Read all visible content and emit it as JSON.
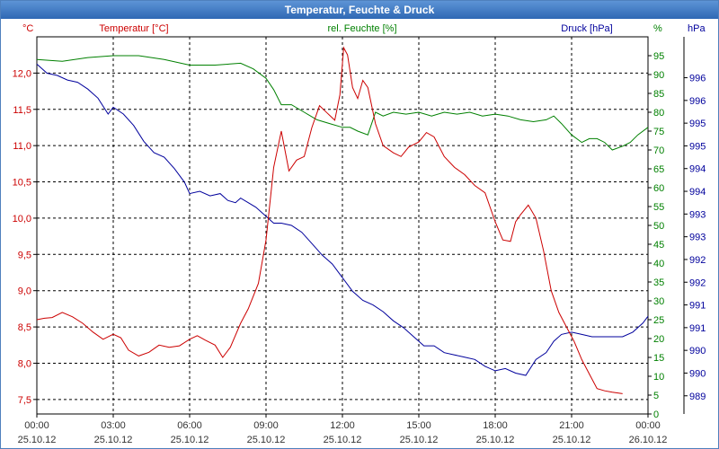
{
  "title": "Temperatur, Feuchte & Druck",
  "colors": {
    "temperature": "#cc0000",
    "humidity": "#008000",
    "pressure": "#00009c",
    "grid": "#000000",
    "axis_text": "#333333"
  },
  "chart_data": {
    "type": "line",
    "grid": true,
    "x_ticks": [
      {
        "time": "00:00",
        "date": "25.10.12"
      },
      {
        "time": "03:00",
        "date": "25.10.12"
      },
      {
        "time": "06:00",
        "date": "25.10.12"
      },
      {
        "time": "09:00",
        "date": "25.10.12"
      },
      {
        "time": "12:00",
        "date": "25.10.12"
      },
      {
        "time": "15:00",
        "date": "25.10.12"
      },
      {
        "time": "18:00",
        "date": "25.10.12"
      },
      {
        "time": "21:00",
        "date": "25.10.12"
      },
      {
        "time": "00:00",
        "date": "26.10.12"
      }
    ],
    "x_range_hours": [
      0,
      24
    ],
    "series": [
      {
        "name": "Temperatur [°C]",
        "axis": "left",
        "unit": "°C",
        "ylim": [
          7.3,
          12.5
        ],
        "ticks": [
          "7,5",
          "8,0",
          "8,5",
          "9,0",
          "9,5",
          "10,0",
          "10,5",
          "11,0",
          "11,5",
          "12,0"
        ],
        "tick_values": [
          7.5,
          8.0,
          8.5,
          9.0,
          9.5,
          10.0,
          10.5,
          11.0,
          11.5,
          12.0
        ],
        "points": [
          [
            0,
            8.6
          ],
          [
            0.3,
            8.62
          ],
          [
            0.6,
            8.63
          ],
          [
            1.0,
            8.7
          ],
          [
            1.4,
            8.64
          ],
          [
            1.8,
            8.55
          ],
          [
            2.2,
            8.43
          ],
          [
            2.6,
            8.33
          ],
          [
            3.0,
            8.4
          ],
          [
            3.3,
            8.35
          ],
          [
            3.6,
            8.18
          ],
          [
            4.0,
            8.1
          ],
          [
            4.4,
            8.15
          ],
          [
            4.8,
            8.25
          ],
          [
            5.2,
            8.22
          ],
          [
            5.6,
            8.24
          ],
          [
            6.0,
            8.33
          ],
          [
            6.3,
            8.38
          ],
          [
            6.6,
            8.32
          ],
          [
            7.0,
            8.25
          ],
          [
            7.3,
            8.08
          ],
          [
            7.6,
            8.22
          ],
          [
            8.0,
            8.55
          ],
          [
            8.3,
            8.75
          ],
          [
            8.7,
            9.1
          ],
          [
            9.0,
            9.7
          ],
          [
            9.3,
            10.7
          ],
          [
            9.6,
            11.2
          ],
          [
            9.9,
            10.65
          ],
          [
            10.2,
            10.8
          ],
          [
            10.5,
            10.85
          ],
          [
            10.8,
            11.25
          ],
          [
            11.1,
            11.55
          ],
          [
            11.4,
            11.45
          ],
          [
            11.7,
            11.35
          ],
          [
            11.9,
            11.7
          ],
          [
            12.05,
            12.35
          ],
          [
            12.2,
            12.25
          ],
          [
            12.4,
            11.8
          ],
          [
            12.6,
            11.65
          ],
          [
            12.8,
            11.9
          ],
          [
            13.0,
            11.8
          ],
          [
            13.3,
            11.3
          ],
          [
            13.6,
            11.0
          ],
          [
            14.0,
            10.9
          ],
          [
            14.3,
            10.85
          ],
          [
            14.6,
            10.98
          ],
          [
            15.0,
            11.05
          ],
          [
            15.3,
            11.18
          ],
          [
            15.6,
            11.12
          ],
          [
            16.0,
            10.85
          ],
          [
            16.4,
            10.7
          ],
          [
            16.8,
            10.6
          ],
          [
            17.2,
            10.45
          ],
          [
            17.6,
            10.35
          ],
          [
            18.0,
            9.95
          ],
          [
            18.3,
            9.7
          ],
          [
            18.6,
            9.68
          ],
          [
            18.8,
            9.95
          ],
          [
            19.0,
            10.05
          ],
          [
            19.3,
            10.18
          ],
          [
            19.6,
            10.0
          ],
          [
            19.9,
            9.55
          ],
          [
            20.2,
            9.0
          ],
          [
            20.5,
            8.7
          ],
          [
            20.8,
            8.5
          ],
          [
            21.1,
            8.3
          ],
          [
            21.4,
            8.05
          ],
          [
            21.7,
            7.85
          ],
          [
            22.0,
            7.65
          ],
          [
            22.3,
            7.62
          ],
          [
            22.6,
            7.6
          ],
          [
            23.0,
            7.58
          ]
        ]
      },
      {
        "name": "rel. Feuchte [%]",
        "axis": "right1",
        "unit": "%",
        "ylim": [
          0,
          100
        ],
        "ticks": [
          "0",
          "5",
          "10",
          "15",
          "20",
          "25",
          "30",
          "35",
          "40",
          "45",
          "50",
          "55",
          "60",
          "65",
          "70",
          "75",
          "80",
          "85",
          "90",
          "95"
        ],
        "tick_values": [
          0,
          5,
          10,
          15,
          20,
          25,
          30,
          35,
          40,
          45,
          50,
          55,
          60,
          65,
          70,
          75,
          80,
          85,
          90,
          95
        ],
        "points": [
          [
            0,
            94
          ],
          [
            1.0,
            93.5
          ],
          [
            2.0,
            94.5
          ],
          [
            3.0,
            95
          ],
          [
            4.0,
            95
          ],
          [
            5.0,
            94
          ],
          [
            6.0,
            92.5
          ],
          [
            6.5,
            92.5
          ],
          [
            7.0,
            92.5
          ],
          [
            8.0,
            93
          ],
          [
            8.5,
            91.5
          ],
          [
            9.0,
            89
          ],
          [
            9.3,
            86
          ],
          [
            9.6,
            82
          ],
          [
            10.0,
            82
          ],
          [
            10.5,
            80
          ],
          [
            11.0,
            78
          ],
          [
            11.5,
            77
          ],
          [
            12.0,
            76
          ],
          [
            12.3,
            76
          ],
          [
            12.6,
            75
          ],
          [
            13.0,
            74
          ],
          [
            13.3,
            80
          ],
          [
            13.6,
            79
          ],
          [
            14.0,
            80
          ],
          [
            14.5,
            79.5
          ],
          [
            15.0,
            80
          ],
          [
            15.5,
            79
          ],
          [
            16.0,
            80
          ],
          [
            16.5,
            79.5
          ],
          [
            17.0,
            80
          ],
          [
            17.5,
            79
          ],
          [
            18.0,
            79.5
          ],
          [
            18.5,
            79
          ],
          [
            19.0,
            78
          ],
          [
            19.5,
            77.5
          ],
          [
            20.0,
            78
          ],
          [
            20.3,
            79
          ],
          [
            20.6,
            77
          ],
          [
            21.0,
            74
          ],
          [
            21.4,
            72
          ],
          [
            21.7,
            73
          ],
          [
            22.0,
            73
          ],
          [
            22.3,
            72
          ],
          [
            22.6,
            70
          ],
          [
            23.0,
            71
          ],
          [
            23.3,
            72
          ],
          [
            23.6,
            74
          ],
          [
            24.0,
            76
          ]
        ]
      },
      {
        "name": "Druck [hPa]",
        "axis": "right2",
        "unit": "hPa",
        "ylim": [
          988.6,
          996.9
        ],
        "ticks": [
          "989",
          "990",
          "990",
          "991",
          "991",
          "992",
          "992",
          "993",
          "993",
          "994",
          "994",
          "995",
          "995",
          "996",
          "996"
        ],
        "tick_values": [
          989,
          989.5,
          990,
          990.5,
          991,
          991.5,
          992,
          992.5,
          993,
          993.5,
          994,
          994.5,
          995,
          995.5,
          996
        ],
        "points": [
          [
            0,
            996.3
          ],
          [
            0.4,
            996.1
          ],
          [
            0.8,
            996.05
          ],
          [
            1.2,
            995.95
          ],
          [
            1.6,
            995.9
          ],
          [
            2.0,
            995.75
          ],
          [
            2.4,
            995.55
          ],
          [
            2.8,
            995.2
          ],
          [
            3.0,
            995.35
          ],
          [
            3.4,
            995.2
          ],
          [
            3.8,
            994.95
          ],
          [
            4.2,
            994.6
          ],
          [
            4.6,
            994.35
          ],
          [
            5.0,
            994.25
          ],
          [
            5.4,
            994.0
          ],
          [
            5.8,
            993.7
          ],
          [
            6.0,
            993.45
          ],
          [
            6.4,
            993.5
          ],
          [
            6.8,
            993.4
          ],
          [
            7.2,
            993.45
          ],
          [
            7.5,
            993.3
          ],
          [
            7.8,
            993.25
          ],
          [
            8.0,
            993.35
          ],
          [
            8.3,
            993.25
          ],
          [
            8.6,
            993.15
          ],
          [
            9.0,
            992.95
          ],
          [
            9.3,
            992.8
          ],
          [
            9.6,
            992.8
          ],
          [
            10.0,
            992.75
          ],
          [
            10.4,
            992.6
          ],
          [
            10.8,
            992.35
          ],
          [
            11.2,
            992.1
          ],
          [
            11.6,
            991.9
          ],
          [
            12.0,
            991.6
          ],
          [
            12.4,
            991.3
          ],
          [
            12.8,
            991.1
          ],
          [
            13.2,
            991.0
          ],
          [
            13.6,
            990.85
          ],
          [
            14.0,
            990.65
          ],
          [
            14.4,
            990.5
          ],
          [
            14.8,
            990.3
          ],
          [
            15.2,
            990.1
          ],
          [
            15.6,
            990.1
          ],
          [
            16.0,
            989.95
          ],
          [
            16.4,
            989.9
          ],
          [
            16.8,
            989.85
          ],
          [
            17.2,
            989.8
          ],
          [
            17.6,
            989.65
          ],
          [
            18.0,
            989.55
          ],
          [
            18.4,
            989.6
          ],
          [
            18.8,
            989.5
          ],
          [
            19.2,
            989.45
          ],
          [
            19.6,
            989.8
          ],
          [
            20.0,
            989.95
          ],
          [
            20.3,
            990.2
          ],
          [
            20.6,
            990.35
          ],
          [
            21.0,
            990.4
          ],
          [
            21.4,
            990.35
          ],
          [
            21.8,
            990.3
          ],
          [
            22.2,
            990.3
          ],
          [
            22.6,
            990.3
          ],
          [
            23.0,
            990.3
          ],
          [
            23.4,
            990.4
          ],
          [
            23.8,
            990.6
          ],
          [
            24.0,
            990.75
          ]
        ]
      }
    ]
  }
}
